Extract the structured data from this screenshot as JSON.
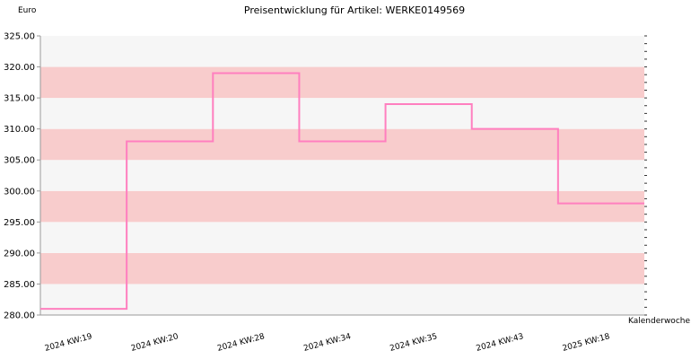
{
  "chart_data": {
    "type": "line",
    "step": true,
    "title": "Preisentwicklung für Artikel: WERKE0149569",
    "ylabel": "Euro",
    "xlabel": "Kalenderwoche",
    "ylim": [
      280,
      325
    ],
    "yticks": [
      "280.00",
      "285.00",
      "290.00",
      "295.00",
      "300.00",
      "305.00",
      "310.00",
      "315.00",
      "320.00",
      "325.00"
    ],
    "categories": [
      "2024 KW:19",
      "2024 KW:20",
      "2024 KW:28",
      "2024 KW:34",
      "2024 KW:35",
      "2024 KW:43",
      "2025 KW:18"
    ],
    "series": [
      {
        "values": [
          281,
          308,
          319,
          308,
          314,
          310,
          298
        ]
      }
    ],
    "grid": true,
    "colors": {
      "line": "#ff7fbf",
      "band_pink": "#f8cccc",
      "band_white": "#f6f6f6",
      "axis": "#999999"
    }
  }
}
